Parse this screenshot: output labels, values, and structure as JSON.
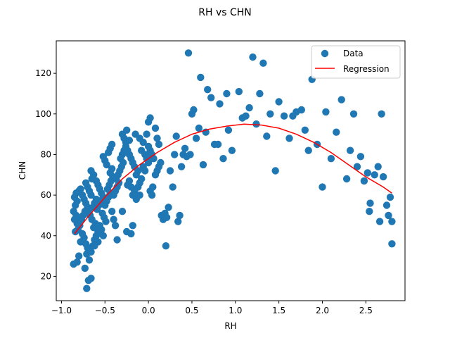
{
  "chart_data": {
    "type": "scatter",
    "title": "RH vs CHN",
    "xlabel": "RH",
    "ylabel": "CHN",
    "xlim": [
      -1.06,
      2.95
    ],
    "ylim": [
      8,
      136
    ],
    "xticks": [
      -1.0,
      -0.5,
      0.0,
      0.5,
      1.0,
      1.5,
      2.0,
      2.5
    ],
    "xtick_labels": [
      "−1.0",
      "−0.5",
      "0.0",
      "0.5",
      "1.0",
      "1.5",
      "2.0",
      "2.5"
    ],
    "yticks": [
      20,
      40,
      60,
      80,
      100,
      120
    ],
    "ytick_labels": [
      "20",
      "40",
      "60",
      "80",
      "100",
      "120"
    ],
    "grid": false,
    "legend": {
      "placement": "top-right",
      "entries": [
        "Data",
        "Regression"
      ]
    },
    "series": [
      {
        "name": "Data",
        "kind": "scatter",
        "color": "#1f77b4",
        "points": [
          [
            -0.86,
            26
          ],
          [
            -0.82,
            27
          ],
          [
            -0.8,
            30
          ],
          [
            -0.78,
            37
          ],
          [
            -0.84,
            42
          ],
          [
            -0.82,
            46
          ],
          [
            -0.85,
            48
          ],
          [
            -0.83,
            50
          ],
          [
            -0.86,
            52
          ],
          [
            -0.84,
            55
          ],
          [
            -0.82,
            57
          ],
          [
            -0.85,
            59
          ],
          [
            -0.83,
            61
          ],
          [
            -0.8,
            62
          ],
          [
            -0.78,
            63
          ],
          [
            -0.76,
            60
          ],
          [
            -0.74,
            58
          ],
          [
            -0.72,
            56
          ],
          [
            -0.7,
            54
          ],
          [
            -0.73,
            52
          ],
          [
            -0.75,
            50
          ],
          [
            -0.77,
            48
          ],
          [
            -0.79,
            45
          ],
          [
            -0.81,
            43
          ],
          [
            -0.76,
            41
          ],
          [
            -0.74,
            39
          ],
          [
            -0.72,
            36
          ],
          [
            -0.7,
            34
          ],
          [
            -0.71,
            31
          ],
          [
            -0.73,
            24
          ],
          [
            -0.71,
            14
          ],
          [
            -0.69,
            18
          ],
          [
            -0.66,
            19
          ],
          [
            -0.68,
            28
          ],
          [
            -0.66,
            32
          ],
          [
            -0.64,
            35
          ],
          [
            -0.62,
            38
          ],
          [
            -0.6,
            40
          ],
          [
            -0.58,
            42
          ],
          [
            -0.63,
            44
          ],
          [
            -0.61,
            46
          ],
          [
            -0.65,
            48
          ],
          [
            -0.67,
            50
          ],
          [
            -0.69,
            52
          ],
          [
            -0.64,
            54
          ],
          [
            -0.62,
            56
          ],
          [
            -0.6,
            58
          ],
          [
            -0.66,
            60
          ],
          [
            -0.68,
            62
          ],
          [
            -0.7,
            64
          ],
          [
            -0.72,
            66
          ],
          [
            -0.65,
            68
          ],
          [
            -0.63,
            70
          ],
          [
            -0.66,
            72
          ],
          [
            -0.6,
            67
          ],
          [
            -0.58,
            65
          ],
          [
            -0.56,
            63
          ],
          [
            -0.54,
            61
          ],
          [
            -0.52,
            59
          ],
          [
            -0.55,
            57
          ],
          [
            -0.57,
            55
          ],
          [
            -0.59,
            53
          ],
          [
            -0.53,
            51
          ],
          [
            -0.51,
            49
          ],
          [
            -0.49,
            47
          ],
          [
            -0.56,
            45
          ],
          [
            -0.54,
            43
          ],
          [
            -0.52,
            40
          ],
          [
            -0.58,
            37
          ],
          [
            -0.62,
            35
          ],
          [
            -0.5,
            55
          ],
          [
            -0.48,
            57
          ],
          [
            -0.46,
            59
          ],
          [
            -0.44,
            61
          ],
          [
            -0.47,
            63
          ],
          [
            -0.45,
            65
          ],
          [
            -0.43,
            67
          ],
          [
            -0.41,
            69
          ],
          [
            -0.44,
            71
          ],
          [
            -0.42,
            73
          ],
          [
            -0.48,
            75
          ],
          [
            -0.5,
            77
          ],
          [
            -0.52,
            79
          ],
          [
            -0.46,
            81
          ],
          [
            -0.44,
            83
          ],
          [
            -0.42,
            85
          ],
          [
            -0.4,
            60
          ],
          [
            -0.38,
            62
          ],
          [
            -0.36,
            64
          ],
          [
            -0.34,
            66
          ],
          [
            -0.37,
            68
          ],
          [
            -0.35,
            70
          ],
          [
            -0.33,
            72
          ],
          [
            -0.31,
            74
          ],
          [
            -0.29,
            76
          ],
          [
            -0.32,
            78
          ],
          [
            -0.3,
            80
          ],
          [
            -0.28,
            82
          ],
          [
            -0.26,
            84
          ],
          [
            -0.4,
            48
          ],
          [
            -0.38,
            45
          ],
          [
            -0.36,
            38
          ],
          [
            -0.42,
            52
          ],
          [
            -0.3,
            52
          ],
          [
            -0.25,
            42
          ],
          [
            -0.2,
            41
          ],
          [
            -0.18,
            45
          ],
          [
            -0.24,
            65
          ],
          [
            -0.22,
            67
          ],
          [
            -0.2,
            64
          ],
          [
            -0.18,
            60
          ],
          [
            -0.16,
            62
          ],
          [
            -0.14,
            58
          ],
          [
            -0.12,
            64
          ],
          [
            -0.1,
            66
          ],
          [
            -0.14,
            70
          ],
          [
            -0.12,
            72
          ],
          [
            -0.16,
            74
          ],
          [
            -0.18,
            76
          ],
          [
            -0.2,
            78
          ],
          [
            -0.22,
            80
          ],
          [
            -0.24,
            82
          ],
          [
            -0.26,
            86
          ],
          [
            -0.28,
            88
          ],
          [
            -0.3,
            90
          ],
          [
            -0.25,
            92
          ],
          [
            -0.22,
            87
          ],
          [
            -0.15,
            90
          ],
          [
            -0.1,
            88
          ],
          [
            -0.06,
            86
          ],
          [
            -0.08,
            82
          ],
          [
            -0.04,
            80
          ],
          [
            -0.02,
            78
          ],
          [
            0.0,
            76
          ],
          [
            -0.06,
            74
          ],
          [
            -0.04,
            72
          ],
          [
            -0.08,
            68
          ],
          [
            -0.1,
            60
          ],
          [
            0.02,
            62
          ],
          [
            0.04,
            60
          ],
          [
            0.05,
            64
          ],
          [
            0.08,
            70
          ],
          [
            0.1,
            72
          ],
          [
            0.12,
            74
          ],
          [
            0.14,
            76
          ],
          [
            0.06,
            78
          ],
          [
            0.04,
            80
          ],
          [
            0.02,
            82
          ],
          [
            0.0,
            84
          ],
          [
            -0.02,
            90
          ],
          [
            0.0,
            96
          ],
          [
            0.02,
            98
          ],
          [
            0.08,
            93
          ],
          [
            0.1,
            88
          ],
          [
            0.12,
            85
          ],
          [
            0.15,
            50
          ],
          [
            0.17,
            48
          ],
          [
            0.19,
            51
          ],
          [
            0.21,
            49
          ],
          [
            0.23,
            54
          ],
          [
            0.2,
            35
          ],
          [
            0.25,
            72
          ],
          [
            0.28,
            64
          ],
          [
            0.3,
            80
          ],
          [
            0.32,
            89
          ],
          [
            0.34,
            47
          ],
          [
            0.36,
            50
          ],
          [
            0.38,
            74
          ],
          [
            0.4,
            80
          ],
          [
            0.42,
            83
          ],
          [
            0.44,
            79
          ],
          [
            0.46,
            130
          ],
          [
            0.48,
            80
          ],
          [
            0.5,
            100
          ],
          [
            0.52,
            102
          ],
          [
            0.55,
            88
          ],
          [
            0.58,
            93
          ],
          [
            0.6,
            118
          ],
          [
            0.63,
            75
          ],
          [
            0.66,
            91
          ],
          [
            0.68,
            112
          ],
          [
            0.72,
            108
          ],
          [
            0.76,
            85
          ],
          [
            0.8,
            85
          ],
          [
            0.82,
            105
          ],
          [
            0.86,
            78
          ],
          [
            0.9,
            110
          ],
          [
            0.92,
            92
          ],
          [
            0.96,
            82
          ],
          [
            1.04,
            111
          ],
          [
            1.08,
            98
          ],
          [
            1.12,
            99
          ],
          [
            1.16,
            103
          ],
          [
            1.2,
            128
          ],
          [
            1.24,
            95
          ],
          [
            1.28,
            110
          ],
          [
            1.32,
            125
          ],
          [
            1.36,
            89
          ],
          [
            1.4,
            100
          ],
          [
            1.46,
            72
          ],
          [
            1.5,
            106
          ],
          [
            1.56,
            99
          ],
          [
            1.62,
            88
          ],
          [
            1.66,
            99
          ],
          [
            1.7,
            101
          ],
          [
            1.76,
            102
          ],
          [
            1.8,
            92
          ],
          [
            1.84,
            82
          ],
          [
            1.88,
            117
          ],
          [
            1.94,
            85
          ],
          [
            2.0,
            64
          ],
          [
            2.04,
            101
          ],
          [
            2.1,
            78
          ],
          [
            2.16,
            91
          ],
          [
            2.22,
            107
          ],
          [
            2.28,
            68
          ],
          [
            2.32,
            82
          ],
          [
            2.36,
            100
          ],
          [
            2.4,
            74
          ],
          [
            2.44,
            79
          ],
          [
            2.48,
            67
          ],
          [
            2.52,
            71
          ],
          [
            2.54,
            52
          ],
          [
            2.55,
            56
          ],
          [
            2.6,
            70
          ],
          [
            2.64,
            74
          ],
          [
            2.66,
            47
          ],
          [
            2.68,
            100
          ],
          [
            2.7,
            69
          ],
          [
            2.74,
            55
          ],
          [
            2.76,
            50
          ],
          [
            2.78,
            59
          ],
          [
            2.8,
            47
          ],
          [
            2.8,
            36
          ]
        ]
      },
      {
        "name": "Regression",
        "kind": "line",
        "color": "#ff0000",
        "points": [
          [
            -0.85,
            41
          ],
          [
            -0.7,
            49
          ],
          [
            -0.5,
            59
          ],
          [
            -0.3,
            68
          ],
          [
            -0.1,
            75
          ],
          [
            0.1,
            81
          ],
          [
            0.3,
            86
          ],
          [
            0.5,
            90
          ],
          [
            0.7,
            92.5
          ],
          [
            0.9,
            94
          ],
          [
            1.1,
            95
          ],
          [
            1.3,
            94.5
          ],
          [
            1.5,
            93
          ],
          [
            1.7,
            90
          ],
          [
            1.9,
            86
          ],
          [
            2.1,
            81
          ],
          [
            2.3,
            75
          ],
          [
            2.5,
            69
          ],
          [
            2.7,
            64
          ],
          [
            2.8,
            61
          ]
        ]
      }
    ]
  }
}
